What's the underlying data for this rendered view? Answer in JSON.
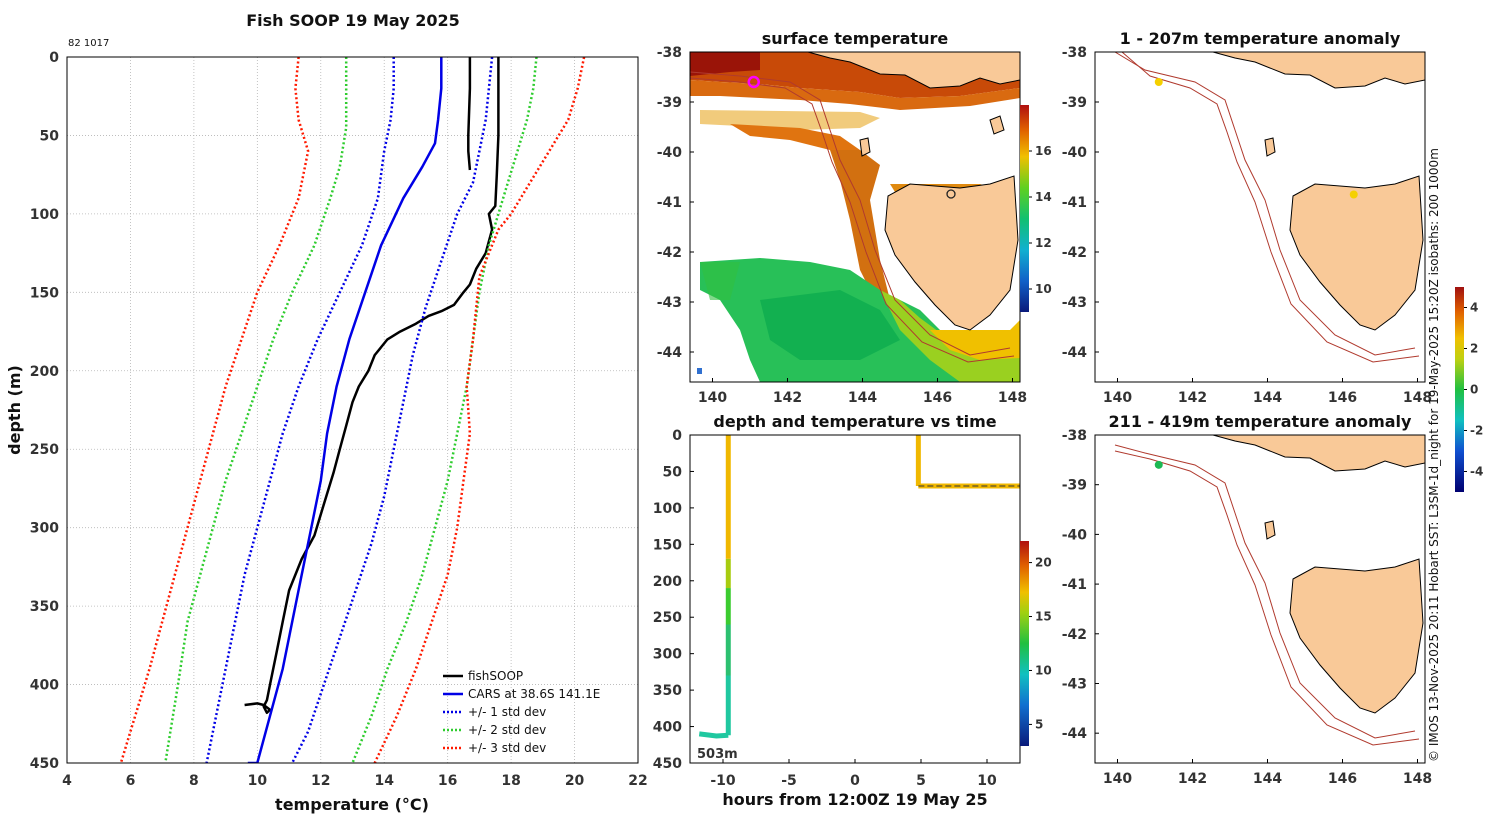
{
  "colors": {
    "fishsoop": "#000000",
    "cars": "#0000e6",
    "std1": "#0000e6",
    "std2": "#2ecc2e",
    "std3": "#ff1a00",
    "land": "#f9c998",
    "isobath": "#b03a2e",
    "grid": "#b5b5b5"
  },
  "header": {
    "id_label": "82 1017"
  },
  "copyright": "© IMOS 13-Nov-2025 20:11 Hobart SST: L3SM-1d_night for 19-May-2025 15:20Z isobaths: 200  1000m",
  "chart_data": [
    {
      "type": "line",
      "title": "Fish SOOP 19 May 2025",
      "xlabel": "temperature (°C)",
      "ylabel": "depth (m)",
      "xlim": [
        4,
        22
      ],
      "ylim": [
        450,
        0
      ],
      "xticks": [
        "4",
        "6",
        "8",
        "10",
        "12",
        "14",
        "16",
        "18",
        "20",
        "22"
      ],
      "yticks": [
        "0",
        "50",
        "100",
        "150",
        "200",
        "250",
        "300",
        "350",
        "400",
        "450"
      ],
      "legend": [
        "fishSOOP",
        "CARS at 38.6S 141.1E",
        "+/- 1 std dev",
        "+/- 2 std dev",
        "+/- 3 std dev"
      ],
      "legend_position": "bottom-right",
      "series": [
        {
          "name": "fishSOOP cast 1",
          "temp": [
            16.7,
            16.7,
            16.65,
            16.65,
            16.7
          ],
          "depth": [
            0,
            20,
            50,
            60,
            72
          ]
        },
        {
          "name": "fishSOOP cast 2",
          "temp": [
            17.6,
            17.6,
            17.6,
            17.55,
            17.5,
            17.3,
            17.4,
            17.2,
            16.9,
            16.7,
            16.5,
            16.2,
            15.8,
            15.4,
            15.0,
            14.5,
            14.1,
            13.7,
            13.5,
            13.2,
            13.0,
            12.8,
            12.6,
            12.4,
            12.1,
            11.8,
            11.4,
            11.0,
            10.8,
            10.6,
            10.4,
            10.3,
            10.2,
            10.3,
            10.4,
            10.2,
            10.0,
            9.6
          ],
          "depth": [
            0,
            20,
            50,
            75,
            95,
            100,
            110,
            125,
            135,
            145,
            150,
            158,
            162,
            165,
            170,
            175,
            180,
            190,
            200,
            210,
            220,
            235,
            250,
            265,
            285,
            305,
            320,
            340,
            360,
            380,
            400,
            410,
            414,
            418,
            416,
            413,
            412,
            413
          ]
        },
        {
          "name": "CARS mean",
          "temp": [
            15.8,
            15.8,
            15.7,
            15.6,
            15.2,
            14.6,
            13.9,
            13.4,
            12.9,
            12.5,
            12.2,
            12.0,
            11.7,
            11.4,
            11.1,
            10.8,
            10.4,
            10.0,
            9.7
          ],
          "depth": [
            0,
            20,
            40,
            55,
            70,
            90,
            120,
            150,
            180,
            210,
            240,
            270,
            300,
            330,
            360,
            390,
            420,
            450,
            450
          ]
        },
        {
          "name": "-1 std",
          "temp": [
            14.3,
            14.3,
            14.2,
            14.0,
            13.8,
            13.3,
            12.6,
            11.9,
            11.3,
            10.8,
            10.4,
            10.0,
            9.6,
            9.3,
            9.0,
            8.7,
            8.4
          ],
          "depth": [
            0,
            20,
            40,
            60,
            90,
            120,
            150,
            180,
            210,
            240,
            270,
            300,
            330,
            360,
            390,
            420,
            450
          ]
        },
        {
          "name": "+1 std",
          "temp": [
            17.4,
            17.3,
            17.2,
            17.0,
            16.8,
            16.3,
            15.8,
            15.3,
            14.9,
            14.6,
            14.3,
            14.0,
            13.6,
            13.1,
            12.6,
            12.1,
            11.6,
            11.1
          ],
          "depth": [
            0,
            20,
            40,
            60,
            80,
            100,
            130,
            160,
            190,
            220,
            250,
            280,
            310,
            340,
            370,
            400,
            430,
            450
          ]
        },
        {
          "name": "-2 std",
          "temp": [
            12.8,
            12.8,
            12.8,
            12.6,
            12.3,
            11.8,
            11.1,
            10.5,
            10.0,
            9.5,
            9.0,
            8.6,
            8.2,
            7.8,
            7.5,
            7.1
          ],
          "depth": [
            0,
            20,
            45,
            70,
            90,
            120,
            150,
            180,
            210,
            240,
            270,
            300,
            330,
            360,
            400,
            450
          ]
        },
        {
          "name": "+2 std",
          "temp": [
            18.8,
            18.7,
            18.5,
            18.2,
            17.9,
            17.6,
            17.3,
            17.0,
            16.8,
            16.6,
            16.3,
            16.0,
            15.6,
            15.2,
            14.7,
            14.1,
            13.6,
            13.0
          ],
          "depth": [
            0,
            20,
            40,
            60,
            80,
            100,
            120,
            150,
            180,
            210,
            240,
            270,
            300,
            330,
            360,
            390,
            420,
            450
          ]
        },
        {
          "name": "-3 std",
          "temp": [
            11.3,
            11.2,
            11.3,
            11.6,
            11.3,
            10.7,
            10.0,
            9.5,
            9.0,
            8.6,
            8.2,
            7.8,
            7.4,
            7.0,
            6.6,
            6.3,
            6.0,
            5.7
          ],
          "depth": [
            0,
            20,
            40,
            60,
            90,
            120,
            150,
            180,
            210,
            240,
            270,
            300,
            330,
            360,
            390,
            410,
            430,
            450
          ]
        },
        {
          "name": "+3 std",
          "temp": [
            20.3,
            20.1,
            19.8,
            19.2,
            18.6,
            18.0,
            17.6,
            17.0,
            16.8,
            16.6,
            16.7,
            16.5,
            16.3,
            16.0,
            15.5,
            15.0,
            14.4,
            13.7
          ],
          "depth": [
            0,
            20,
            40,
            60,
            80,
            100,
            110,
            140,
            180,
            210,
            240,
            270,
            300,
            330,
            360,
            390,
            420,
            450
          ]
        }
      ]
    },
    {
      "type": "heatmap",
      "title": "surface temperature",
      "xticks": [
        "140",
        "142",
        "144",
        "146",
        "148"
      ],
      "yticks": [
        "-38",
        "-39",
        "-40",
        "-41",
        "-42",
        "-43",
        "-44"
      ],
      "xlim": [
        139.4,
        148.2
      ],
      "ylim": [
        -44.6,
        -38
      ],
      "colorbar_ticks": [
        "10",
        "12",
        "14",
        "16"
      ],
      "colorbar_range": [
        9,
        18
      ],
      "marker": {
        "lon": 141.1,
        "lat": -38.6,
        "color": "#ff00ff"
      }
    },
    {
      "type": "scatter",
      "title": "depth and temperature vs time",
      "xlabel": "hours from 12:00Z 19 May 25",
      "xticks": [
        "-10",
        "-5",
        "0",
        "5",
        "10"
      ],
      "yticks": [
        "0",
        "50",
        "100",
        "150",
        "200",
        "250",
        "300",
        "350",
        "400",
        "450"
      ],
      "xlim": [
        -12.5,
        12.5
      ],
      "ylim": [
        450,
        0
      ],
      "annotation": "503m",
      "colorbar_ticks": [
        "5",
        "10",
        "15",
        "20"
      ],
      "colorbar_range": [
        3,
        22
      ]
    },
    {
      "type": "heatmap",
      "title": "1 - 207m temperature anomaly",
      "xticks": [
        "140",
        "142",
        "144",
        "146",
        "148"
      ],
      "yticks": [
        "-38",
        "-39",
        "-40",
        "-41",
        "-42",
        "-43",
        "-44"
      ],
      "points": [
        {
          "lon": 141.1,
          "lat": -38.6,
          "color": "#f5d000"
        },
        {
          "lon": 146.3,
          "lat": -40.85,
          "color": "#f5d000"
        }
      ]
    },
    {
      "type": "heatmap",
      "title": "211 - 419m temperature anomaly",
      "xticks": [
        "140",
        "142",
        "144",
        "146",
        "148"
      ],
      "yticks": [
        "-38",
        "-39",
        "-40",
        "-41",
        "-42",
        "-43",
        "-44"
      ],
      "points": [
        {
          "lon": 141.1,
          "lat": -38.6,
          "color": "#1db954"
        }
      ],
      "colorbar_ticks": [
        "-4",
        "-2",
        "0",
        "2",
        "4"
      ],
      "colorbar_range": [
        -5,
        5
      ]
    }
  ]
}
